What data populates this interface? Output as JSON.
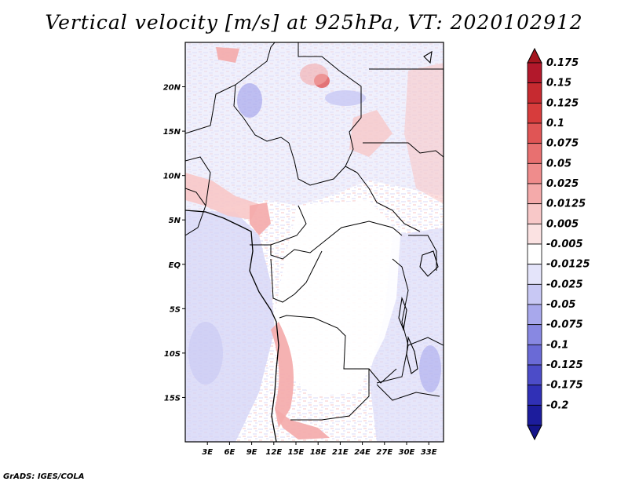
{
  "title": "Vertical velocity [m/s] at 925hPa, VT: 2020102912",
  "credit": "GrADS: IGES/COLA",
  "map": {
    "lon_range": [
      0,
      35
    ],
    "lat_range": [
      -20,
      25
    ],
    "lat_ticks": [
      {
        "value": 20,
        "label": "20N"
      },
      {
        "value": 15,
        "label": "15N"
      },
      {
        "value": 10,
        "label": "10N"
      },
      {
        "value": 5,
        "label": "5N"
      },
      {
        "value": 0,
        "label": "EQ"
      },
      {
        "value": -5,
        "label": "5S"
      },
      {
        "value": -10,
        "label": "10S"
      },
      {
        "value": -15,
        "label": "15S"
      }
    ],
    "lon_ticks": [
      {
        "value": 3,
        "label": "3E"
      },
      {
        "value": 6,
        "label": "6E"
      },
      {
        "value": 9,
        "label": "9E"
      },
      {
        "value": 12,
        "label": "12E"
      },
      {
        "value": 15,
        "label": "15E"
      },
      {
        "value": 18,
        "label": "18E"
      },
      {
        "value": 21,
        "label": "21E"
      },
      {
        "value": 24,
        "label": "24E"
      },
      {
        "value": 27,
        "label": "27E"
      },
      {
        "value": 30,
        "label": "30E"
      },
      {
        "value": 33,
        "label": "33E"
      }
    ]
  },
  "colorbar": {
    "levels": [
      {
        "label": "0.175",
        "color": "#b2182b"
      },
      {
        "label": "0.15",
        "color": "#c62a30"
      },
      {
        "label": "0.125",
        "color": "#d73c3c"
      },
      {
        "label": "0.1",
        "color": "#e05555"
      },
      {
        "label": "0.075",
        "color": "#e87070"
      },
      {
        "label": "0.05",
        "color": "#ef8c8c"
      },
      {
        "label": "0.025",
        "color": "#f4aaaa"
      },
      {
        "label": "0.0125",
        "color": "#f8c8c8"
      },
      {
        "label": "0.005",
        "color": "#fbe2e2"
      },
      {
        "label": "-0.005",
        "color": "#ffffff"
      },
      {
        "label": "-0.0125",
        "color": "#e4e4fa"
      },
      {
        "label": "-0.025",
        "color": "#c8c8f4"
      },
      {
        "label": "-0.05",
        "color": "#a8a8ec"
      },
      {
        "label": "-0.075",
        "color": "#8888e2"
      },
      {
        "label": "-0.1",
        "color": "#6a6ad6"
      },
      {
        "label": "-0.125",
        "color": "#4c4cc8"
      },
      {
        "label": "-0.175",
        "color": "#3030b6"
      },
      {
        "label": "-0.2",
        "color": "#1c1c9c"
      }
    ],
    "top_arrow_color": "#a5161f",
    "bottom_arrow_color": "#14148a"
  }
}
